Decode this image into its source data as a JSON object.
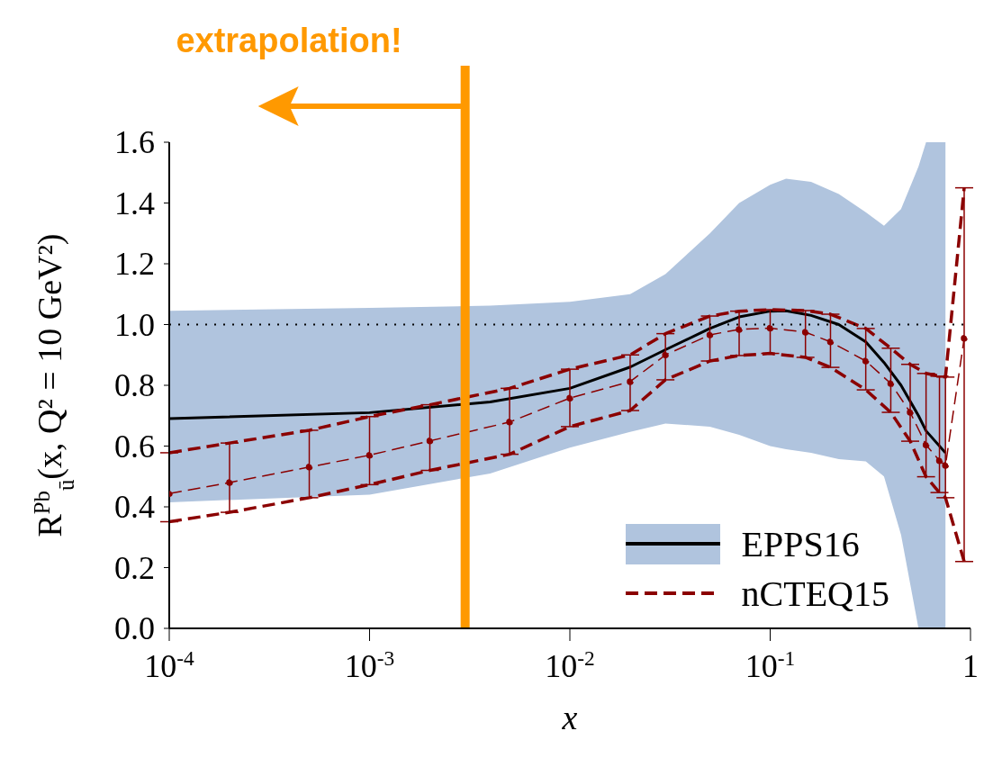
{
  "chart_data": {
    "type": "line",
    "xlabel": "x",
    "ylabel": "R$^{Pb}$$_{ū}$(x, Q² = 10 GeV²)",
    "log": "x",
    "xlim": [
      0.0001,
      1
    ],
    "xticks": [
      {
        "value": 0.0001,
        "label": "10$^{-4}$"
      },
      {
        "value": 0.001,
        "label": "10$^{-3}$"
      },
      {
        "value": 0.01,
        "label": "10$^{-2}$"
      },
      {
        "value": 0.1,
        "label": "10$^{-1}$"
      },
      1
    ],
    "ylim": [
      0,
      1.6
    ],
    "yticks": [
      {
        "value": 0,
        "label": "0.0"
      },
      {
        "value": 0.2,
        "label": "0.2"
      },
      {
        "value": 0.4,
        "label": "0.4"
      },
      {
        "value": 0.6,
        "label": "0.6"
      },
      {
        "value": 0.8,
        "label": "0.8"
      },
      {
        "value": 1,
        "label": "1.0"
      },
      {
        "value": 1.2,
        "label": "1.2"
      },
      {
        "value": 1.4,
        "label": "1.4"
      },
      {
        "value": 1.6,
        "label": "1.6"
      }
    ],
    "legend": "bottom right",
    "ref_lines": [
      {
        "axis": "y",
        "value": 1,
        "color": "#000000",
        "line_style": "dotted"
      },
      {
        "axis": "x",
        "value": 0.003,
        "color": "#ff9900",
        "label": "extrapolation!"
      }
    ],
    "series": [
      {
        "name": "EPPS16",
        "color": "#000000",
        "line_style": "solid",
        "marker": "none",
        "x": [
          0.0001,
          0.001,
          0.004,
          0.01,
          0.02,
          0.03,
          0.05,
          0.07,
          0.1,
          0.12,
          0.16,
          0.22,
          0.3,
          0.37,
          0.45,
          0.55,
          0.6,
          0.75
        ],
        "values": [
          0.69,
          0.71,
          0.745,
          0.79,
          0.86,
          0.917,
          0.987,
          1.025,
          1.044,
          1.045,
          1.03,
          1.0,
          0.943,
          0.875,
          0.8,
          0.7,
          0.65,
          0.578
        ],
        "upper": [
          1.045,
          1.055,
          1.062,
          1.075,
          1.1,
          1.166,
          1.3,
          1.4,
          1.46,
          1.48,
          1.47,
          1.43,
          1.37,
          1.325,
          1.38,
          1.52,
          1.6,
          1.6
        ],
        "lower": [
          0.415,
          0.44,
          0.51,
          0.595,
          0.647,
          0.674,
          0.664,
          0.637,
          0.6,
          0.59,
          0.578,
          0.557,
          0.55,
          0.5,
          0.308,
          0.0,
          0.0,
          0.0
        ]
      },
      {
        "color": "#8b0000",
        "line_style": "dashed",
        "marker": "none",
        "x": [
          0.0001,
          0.0002,
          0.0005,
          0.001,
          0.002,
          0.005,
          0.01,
          0.02,
          0.03,
          0.05,
          0.07,
          0.1,
          0.15,
          0.2,
          0.3,
          0.4,
          0.5,
          0.6,
          0.7,
          0.75,
          0.93
        ],
        "values": [
          0.578,
          0.61,
          0.652,
          0.697,
          0.736,
          0.79,
          0.853,
          0.9,
          0.97,
          1.028,
          1.044,
          1.049,
          1.046,
          1.034,
          0.987,
          0.922,
          0.869,
          0.839,
          0.83,
          0.827,
          1.45
        ]
      },
      {
        "color": "#8b0000",
        "line_style": "dashed",
        "marker": "none",
        "x": [
          0.0001,
          0.0002,
          0.0005,
          0.001,
          0.002,
          0.005,
          0.01,
          0.02,
          0.03,
          0.05,
          0.07,
          0.1,
          0.15,
          0.2,
          0.3,
          0.4,
          0.5,
          0.6,
          0.7,
          0.75,
          0.93
        ],
        "values": [
          0.351,
          0.382,
          0.43,
          0.473,
          0.52,
          0.573,
          0.664,
          0.717,
          0.818,
          0.88,
          0.898,
          0.905,
          0.892,
          0.859,
          0.785,
          0.711,
          0.616,
          0.499,
          0.447,
          0.43,
          0.22
        ]
      },
      {
        "name": "nCTEQ15",
        "color": "#8b0000",
        "line_style": "dashed",
        "marker": "circle",
        "x": [
          0.0001,
          0.0002,
          0.0005,
          0.001,
          0.002,
          0.005,
          0.01,
          0.02,
          0.03,
          0.05,
          0.07,
          0.1,
          0.15,
          0.2,
          0.3,
          0.4,
          0.5,
          0.6,
          0.7,
          0.75,
          0.93
        ],
        "values": [
          0.444,
          0.48,
          0.531,
          0.57,
          0.617,
          0.679,
          0.758,
          0.812,
          0.9,
          0.966,
          0.984,
          0.988,
          0.975,
          0.943,
          0.88,
          0.806,
          0.711,
          0.604,
          0.552,
          0.536,
          0.955
        ],
        "errors": [
          [
            0.351,
            0.578
          ],
          [
            0.382,
            0.61
          ],
          [
            0.43,
            0.652
          ],
          [
            0.473,
            0.697
          ],
          [
            0.52,
            0.736
          ],
          [
            0.573,
            0.79
          ],
          [
            0.664,
            0.853
          ],
          [
            0.717,
            0.9
          ],
          [
            0.818,
            0.97
          ],
          [
            0.88,
            1.028
          ],
          [
            0.898,
            1.044
          ],
          [
            0.905,
            1.049
          ],
          [
            0.892,
            1.046
          ],
          [
            0.859,
            1.034
          ],
          [
            0.785,
            0.987
          ],
          [
            0.711,
            0.922
          ],
          [
            0.616,
            0.869
          ],
          [
            0.499,
            0.839
          ],
          [
            0.447,
            0.83
          ],
          [
            0.43,
            0.827
          ],
          [
            0.22,
            1.45
          ]
        ]
      }
    ]
  }
}
